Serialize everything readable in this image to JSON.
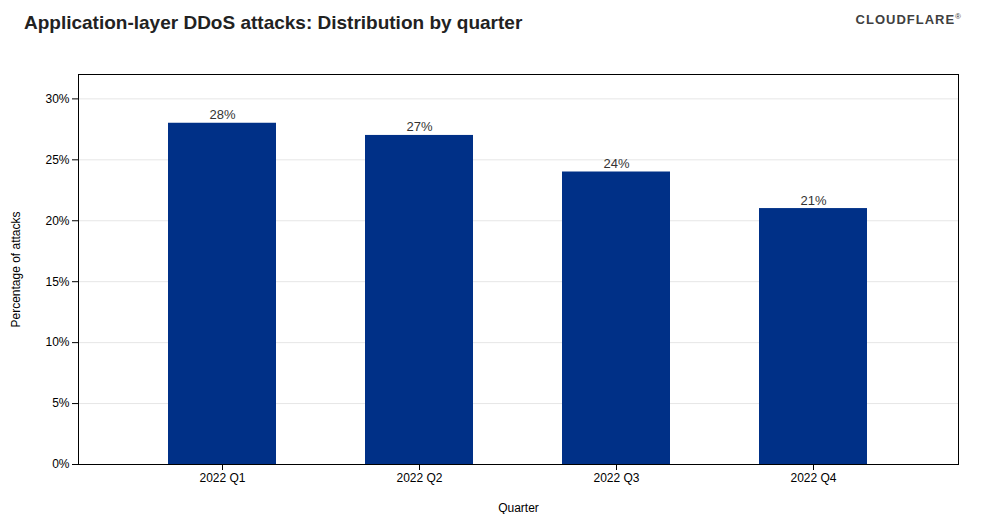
{
  "chart_data": {
    "type": "bar",
    "title": "Application-layer DDoS attacks: Distribution by quarter",
    "xlabel": "Quarter",
    "ylabel": "Percentage of attacks",
    "categories": [
      "2022 Q1",
      "2022 Q2",
      "2022 Q3",
      "2022 Q4"
    ],
    "values": [
      28,
      27,
      24,
      21
    ],
    "value_labels": [
      "28%",
      "27%",
      "24%",
      "21%"
    ],
    "data_labels": true,
    "color": "#003087",
    "ylim": [
      0,
      32
    ],
    "yticks": [
      {
        "value": 0,
        "label": "0%"
      },
      {
        "value": 5,
        "label": "5%"
      },
      {
        "value": 10,
        "label": "10%"
      },
      {
        "value": 15,
        "label": "15%"
      },
      {
        "value": 20,
        "label": "20%"
      },
      {
        "value": 25,
        "label": "25%"
      },
      {
        "value": 30,
        "label": "30%"
      }
    ],
    "grid": true,
    "annotations": [
      "CLOUDFLARE",
      "®"
    ]
  }
}
